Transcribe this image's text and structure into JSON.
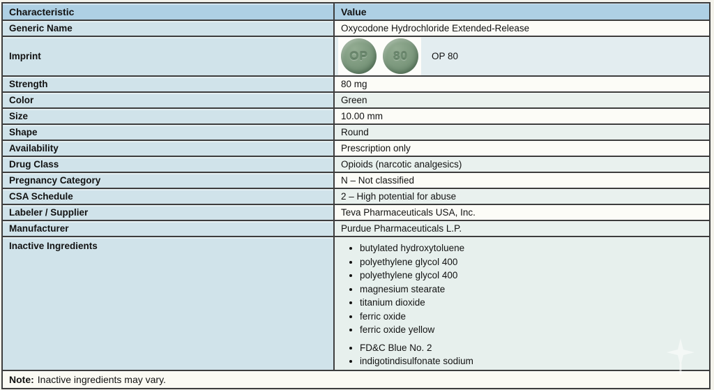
{
  "table": {
    "headers": {
      "characteristic": "Characteristic",
      "value": "Value"
    },
    "rows": [
      {
        "label": "Generic Name",
        "value": "Oxycodone Hydrochloride Extended-Release"
      },
      {
        "label": "Imprint",
        "value": "OP 80",
        "pills": [
          {
            "imprint": "OP"
          },
          {
            "imprint": "80"
          }
        ]
      },
      {
        "label": "Strength",
        "value": "80 mg"
      },
      {
        "label": "Color",
        "value": "Green"
      },
      {
        "label": "Size",
        "value": "10.00 mm"
      },
      {
        "label": "Shape",
        "value": "Round"
      },
      {
        "label": "Availability",
        "value": "Prescription only"
      },
      {
        "label": "Drug Class",
        "value": "Opioids (narcotic analgesics)"
      },
      {
        "label": "Pregnancy Category",
        "value": "N – Not classified"
      },
      {
        "label": "CSA Schedule",
        "value": "2 – High potential for abuse"
      },
      {
        "label": "Labeler / Supplier",
        "value": "Teva Pharmaceuticals USA, Inc."
      },
      {
        "label": "Manufacturer",
        "value": "Purdue Pharmaceuticals L.P."
      },
      {
        "label": "Inactive Ingredients",
        "groups": [
          [
            "butylated hydroxytoluene",
            "polyethylene glycol 400",
            "polyethylene glycol 400",
            "magnesium stearate",
            "titanium dioxide",
            "ferric oxide",
            "ferric oxide yellow"
          ],
          [
            "FD&C Blue No. 2",
            "indigotindisulfonate sodium"
          ]
        ]
      }
    ],
    "note": {
      "label": "Note:",
      "text": "Inactive ingredients may vary."
    }
  },
  "colors": {
    "header_bg": "#aed0e4",
    "label_column_bg": "#d0e3ea",
    "value_row_white": "#fcfcf7",
    "value_row_tint": "#e9f1ee",
    "border": "#3d3d3d",
    "pill_green": "#7e9a7f"
  }
}
